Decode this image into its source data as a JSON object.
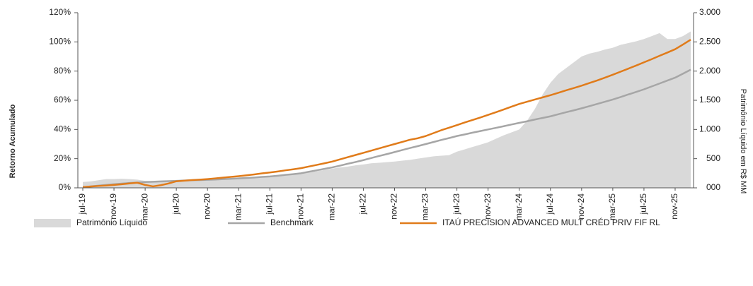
{
  "chart_data": {
    "type": "line",
    "y_label": "Retorno Acumulado",
    "y2_label": "Patrimônio Líquido em R$ MM",
    "categories": [
      "jul-19",
      null,
      null,
      null,
      "nov-19",
      null,
      null,
      null,
      "mar-20",
      null,
      null,
      null,
      "jul-20",
      null,
      null,
      null,
      "nov-20",
      null,
      null,
      null,
      "mar-21",
      null,
      null,
      null,
      "jul-21",
      null,
      null,
      null,
      "nov-21",
      null,
      null,
      null,
      "mar-22",
      null,
      null,
      null,
      "jul-22",
      null,
      null,
      null,
      "nov-22",
      null,
      null,
      null,
      "mar-23",
      null,
      null,
      null,
      "jul-23",
      null,
      null,
      null,
      "nov-23",
      null,
      null,
      null,
      "mar-24",
      null,
      null,
      null,
      "jul-24",
      null,
      null,
      null,
      "nov-24",
      null,
      null,
      null,
      "mar-25",
      null,
      null,
      null,
      "jul-25",
      null,
      null,
      null,
      "nov-25",
      null,
      null
    ],
    "series": [
      {
        "name": "Patrimônio Líquido",
        "color": "#d9d9d9",
        "kind": "area",
        "axis": "y2",
        "values": [
          100,
          110,
          130,
          150,
          150,
          155,
          150,
          140,
          120,
          115,
          120,
          125,
          130,
          135,
          140,
          145,
          150,
          155,
          160,
          165,
          170,
          178,
          185,
          192,
          200,
          210,
          220,
          230,
          240,
          260,
          285,
          305,
          330,
          350,
          365,
          385,
          400,
          420,
          430,
          440,
          450,
          465,
          480,
          500,
          520,
          540,
          550,
          560,
          620,
          660,
          700,
          740,
          780,
          840,
          900,
          950,
          1000,
          1150,
          1350,
          1600,
          1800,
          1950,
          2050,
          2150,
          2250,
          2300,
          2330,
          2370,
          2400,
          2450,
          2480,
          2510,
          2550,
          2600,
          2650,
          2550,
          2550,
          2600,
          2680
        ]
      },
      {
        "name": "Benchmark",
        "color": "#a6a6a6",
        "kind": "line",
        "values": [
          0.5,
          1.0,
          1.5,
          2.0,
          2.5,
          2.9,
          3.3,
          3.6,
          4.0,
          4.2,
          4.4,
          4.6,
          4.8,
          5.0,
          5.2,
          5.3,
          5.5,
          5.7,
          6.0,
          6.2,
          6.5,
          6.8,
          7.1,
          7.5,
          7.8,
          8.3,
          8.9,
          9.4,
          10.0,
          11.0,
          12.0,
          13.0,
          14.0,
          15.2,
          16.5,
          17.7,
          19.0,
          20.4,
          21.8,
          23.1,
          24.5,
          25.9,
          27.3,
          28.6,
          30.0,
          31.4,
          32.8,
          34.1,
          35.5,
          36.6,
          37.8,
          38.9,
          40.0,
          41.1,
          42.2,
          43.4,
          44.5,
          45.6,
          46.8,
          47.9,
          49.0,
          50.4,
          51.8,
          53.1,
          54.5,
          56.0,
          57.5,
          59.0,
          60.5,
          62.2,
          64.0,
          65.7,
          67.5,
          69.5,
          71.5,
          73.5,
          75.5,
          78.2,
          81.0
        ]
      },
      {
        "name": "ITAÚ PRECISION ADVANCED MULT CRÉD PRIV FIF RL",
        "color": "#e07b1a",
        "kind": "line",
        "values": [
          0.5,
          0.9,
          1.3,
          1.6,
          2.0,
          2.5,
          3.0,
          3.5,
          2.0,
          1.0,
          1.8,
          3.0,
          4.5,
          4.9,
          5.3,
          5.6,
          6.0,
          6.5,
          7.0,
          7.5,
          8.0,
          8.6,
          9.2,
          9.9,
          10.5,
          11.2,
          12.0,
          12.7,
          13.5,
          14.6,
          15.7,
          16.8,
          18.0,
          19.5,
          21.0,
          22.5,
          24.0,
          25.5,
          27.0,
          28.5,
          30.0,
          31.5,
          33.0,
          34.0,
          35.5,
          37.5,
          39.5,
          41.2,
          43.0,
          44.8,
          46.5,
          48.2,
          50.0,
          51.8,
          53.7,
          55.6,
          57.5,
          59.0,
          60.5,
          62.0,
          63.5,
          65.1,
          66.8,
          68.4,
          70.0,
          71.8,
          73.6,
          75.5,
          77.5,
          79.6,
          81.7,
          83.8,
          86.0,
          88.2,
          90.5,
          92.7,
          95.0,
          98.2,
          101.5
        ]
      }
    ],
    "ylim": [
      0,
      120
    ],
    "yticks": [
      {
        "value": 0,
        "label": "0%"
      },
      {
        "value": 20,
        "label": "20%"
      },
      {
        "value": 40,
        "label": "40%"
      },
      {
        "value": 60,
        "label": "60%"
      },
      {
        "value": 80,
        "label": "80%"
      },
      {
        "value": 100,
        "label": "100%"
      },
      {
        "value": 120,
        "label": "120%"
      }
    ],
    "y2lim": [
      0,
      3000
    ],
    "y2ticks": [
      {
        "value": 0,
        "label": "000"
      },
      {
        "value": 500,
        "label": "500"
      },
      {
        "value": 1000,
        "label": "1.000"
      },
      {
        "value": 1500,
        "label": "1.500"
      },
      {
        "value": 2000,
        "label": "2.000"
      },
      {
        "value": 2500,
        "label": "2.500"
      },
      {
        "value": 3000,
        "label": "3.000"
      }
    ]
  }
}
